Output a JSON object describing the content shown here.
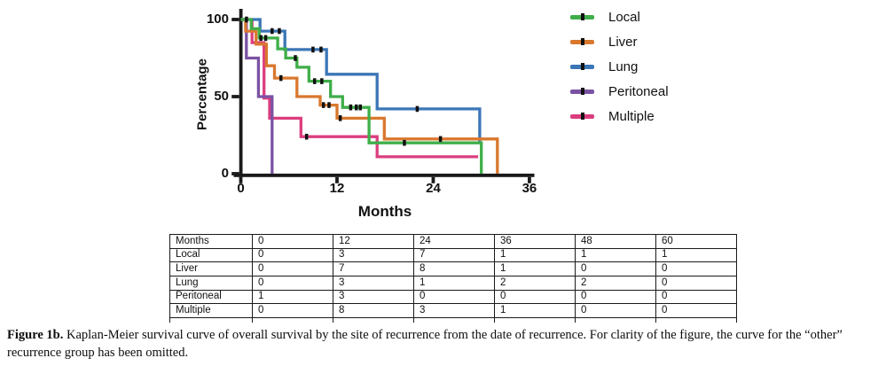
{
  "chart_data": {
    "type": "line",
    "subtype": "kaplan-meier-step",
    "title": "",
    "xlabel": "Months",
    "ylabel": "Percentage",
    "xlim": [
      0,
      36
    ],
    "ylim": [
      0,
      100
    ],
    "x_ticks": [
      0,
      12,
      24,
      36
    ],
    "y_ticks": [
      100,
      50,
      0
    ],
    "grid": false,
    "legend_position": "right",
    "series": [
      {
        "name": "Local",
        "color": "#3fae49",
        "points": [
          [
            0,
            100
          ],
          [
            1.3,
            100
          ],
          [
            1.3,
            94
          ],
          [
            2.3,
            94
          ],
          [
            2.3,
            88
          ],
          [
            4.6,
            88
          ],
          [
            4.6,
            81
          ],
          [
            5.6,
            81
          ],
          [
            5.6,
            75
          ],
          [
            7.0,
            75
          ],
          [
            7.0,
            69
          ],
          [
            8.5,
            69
          ],
          [
            8.5,
            60
          ],
          [
            11.2,
            60
          ],
          [
            11.2,
            50
          ],
          [
            12.7,
            50
          ],
          [
            12.7,
            43
          ],
          [
            16,
            43
          ],
          [
            16,
            20
          ],
          [
            30,
            20
          ],
          [
            30,
            0
          ]
        ],
        "censor_marks": [
          [
            0.7,
            100
          ],
          [
            2.5,
            88
          ],
          [
            3.1,
            88
          ],
          [
            6.8,
            75
          ],
          [
            9.2,
            60
          ],
          [
            10.1,
            60
          ],
          [
            13.7,
            43
          ],
          [
            14.4,
            43
          ],
          [
            14.9,
            43
          ],
          [
            20.4,
            20
          ]
        ]
      },
      {
        "name": "Liver",
        "color": "#d9782e",
        "points": [
          [
            0,
            100
          ],
          [
            0.6,
            100
          ],
          [
            0.6,
            92.5
          ],
          [
            1.9,
            92.5
          ],
          [
            1.9,
            84
          ],
          [
            3.2,
            84
          ],
          [
            3.2,
            70
          ],
          [
            4.2,
            70
          ],
          [
            4.2,
            62
          ],
          [
            7.0,
            62
          ],
          [
            7.0,
            50
          ],
          [
            9.9,
            50
          ],
          [
            9.9,
            44.5
          ],
          [
            12.0,
            44.5
          ],
          [
            12.0,
            36
          ],
          [
            17.9,
            36
          ],
          [
            17.9,
            22.5
          ],
          [
            32.0,
            22.5
          ],
          [
            32.0,
            0
          ]
        ],
        "censor_marks": [
          [
            5.0,
            62
          ],
          [
            10.3,
            44.5
          ],
          [
            11.0,
            44.5
          ],
          [
            12.4,
            36
          ],
          [
            24.9,
            22.5
          ]
        ]
      },
      {
        "name": "Lung",
        "color": "#3b76b7",
        "points": [
          [
            0,
            100
          ],
          [
            2.4,
            100
          ],
          [
            2.4,
            92.5
          ],
          [
            5.5,
            92.5
          ],
          [
            5.5,
            80.5
          ],
          [
            10.7,
            80.5
          ],
          [
            10.7,
            64.5
          ],
          [
            17,
            64.5
          ],
          [
            17,
            42
          ],
          [
            29.8,
            42
          ],
          [
            29.8,
            21
          ]
        ],
        "censor_marks": [
          [
            3.9,
            92.5
          ],
          [
            4.8,
            92.5
          ],
          [
            9.0,
            80.5
          ],
          [
            10.0,
            80.5
          ],
          [
            22,
            42
          ]
        ]
      },
      {
        "name": "Peritoneal",
        "color": "#7a52a3",
        "points": [
          [
            0,
            100
          ],
          [
            0.7,
            100
          ],
          [
            0.7,
            75
          ],
          [
            2.2,
            75
          ],
          [
            2.2,
            50
          ],
          [
            3.9,
            50
          ],
          [
            3.9,
            0
          ]
        ],
        "censor_marks": []
      },
      {
        "name": "Multiple",
        "color": "#dc3d7f",
        "points": [
          [
            0,
            100
          ],
          [
            1.4,
            100
          ],
          [
            1.4,
            85
          ],
          [
            2.9,
            85
          ],
          [
            2.9,
            49
          ],
          [
            3.6,
            49
          ],
          [
            3.6,
            36
          ],
          [
            7.5,
            36
          ],
          [
            7.5,
            24
          ],
          [
            17,
            24
          ],
          [
            17,
            11
          ],
          [
            29.6,
            11
          ]
        ],
        "censor_marks": [
          [
            8.2,
            24
          ]
        ]
      }
    ]
  },
  "table": {
    "rows": [
      [
        "Months",
        "0",
        "12",
        "24",
        "36",
        "48",
        "60"
      ],
      [
        "Local",
        "0",
        "3",
        "7",
        "1",
        "1",
        "1"
      ],
      [
        "Liver",
        "0",
        "7",
        "8",
        "1",
        "0",
        "0"
      ],
      [
        "Lung",
        "0",
        "3",
        "1",
        "2",
        "2",
        "0"
      ],
      [
        "Peritoneal",
        "1",
        "3",
        "0",
        "0",
        "0",
        "0"
      ],
      [
        "Multiple",
        "0",
        "8",
        "3",
        "1",
        "0",
        "0"
      ]
    ]
  },
  "caption": {
    "label": "Figure 1b.",
    "text": " Kaplan-Meier survival curve of overall survival by the site of recurrence from the date of recurrence. For clarity of the figure, the curve for the “other” recurrence group has been omitted."
  }
}
